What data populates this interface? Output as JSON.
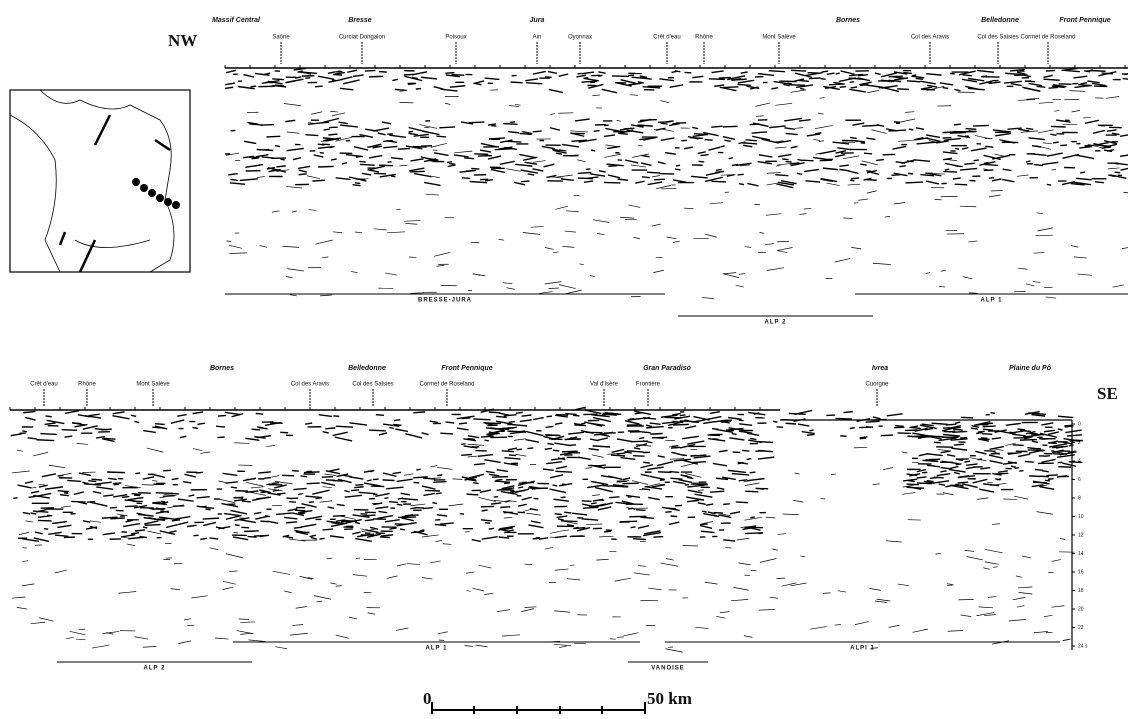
{
  "orientation": {
    "left": "NW",
    "right": "SE"
  },
  "top_panel": {
    "regions": [
      "Massif Central",
      "Bresse",
      "Jura",
      "Bornes",
      "Belledonne",
      "Front Pennique"
    ],
    "places": [
      "Saône",
      "Curciat Dongalon",
      "Poisoux",
      "Ain",
      "Oyonnax",
      "Crêt d'eau",
      "Rhône",
      "Mont Salève",
      "Col des Aravis",
      "Col des Saisies",
      "Cormet de Roseland"
    ],
    "profiles": [
      "BRESSE-JURA",
      "ALP 2",
      "ALP 1"
    ]
  },
  "bottom_panel": {
    "regions": [
      "Bornes",
      "Belledonne",
      "Front Pennique",
      "Gran Paradiso",
      "Ivrea",
      "Plaine du Pô"
    ],
    "places": [
      "Crêt d'eau",
      "Rhône",
      "Mont Salève",
      "Col des Aravis",
      "Col des Saisies",
      "Cormet de Roseland",
      "Val d'Isère",
      "Frontière",
      "Cuorgne"
    ],
    "profiles": [
      "ALP 2",
      "ALP 1",
      "VANOISE",
      "ALPI 1"
    ],
    "depth_ticks": [
      "0",
      "2",
      "4",
      "6",
      "8",
      "10",
      "12",
      "14",
      "16",
      "18",
      "20",
      "22",
      "24 s"
    ]
  },
  "scale_bar": {
    "start": "0",
    "end": "50 km"
  }
}
